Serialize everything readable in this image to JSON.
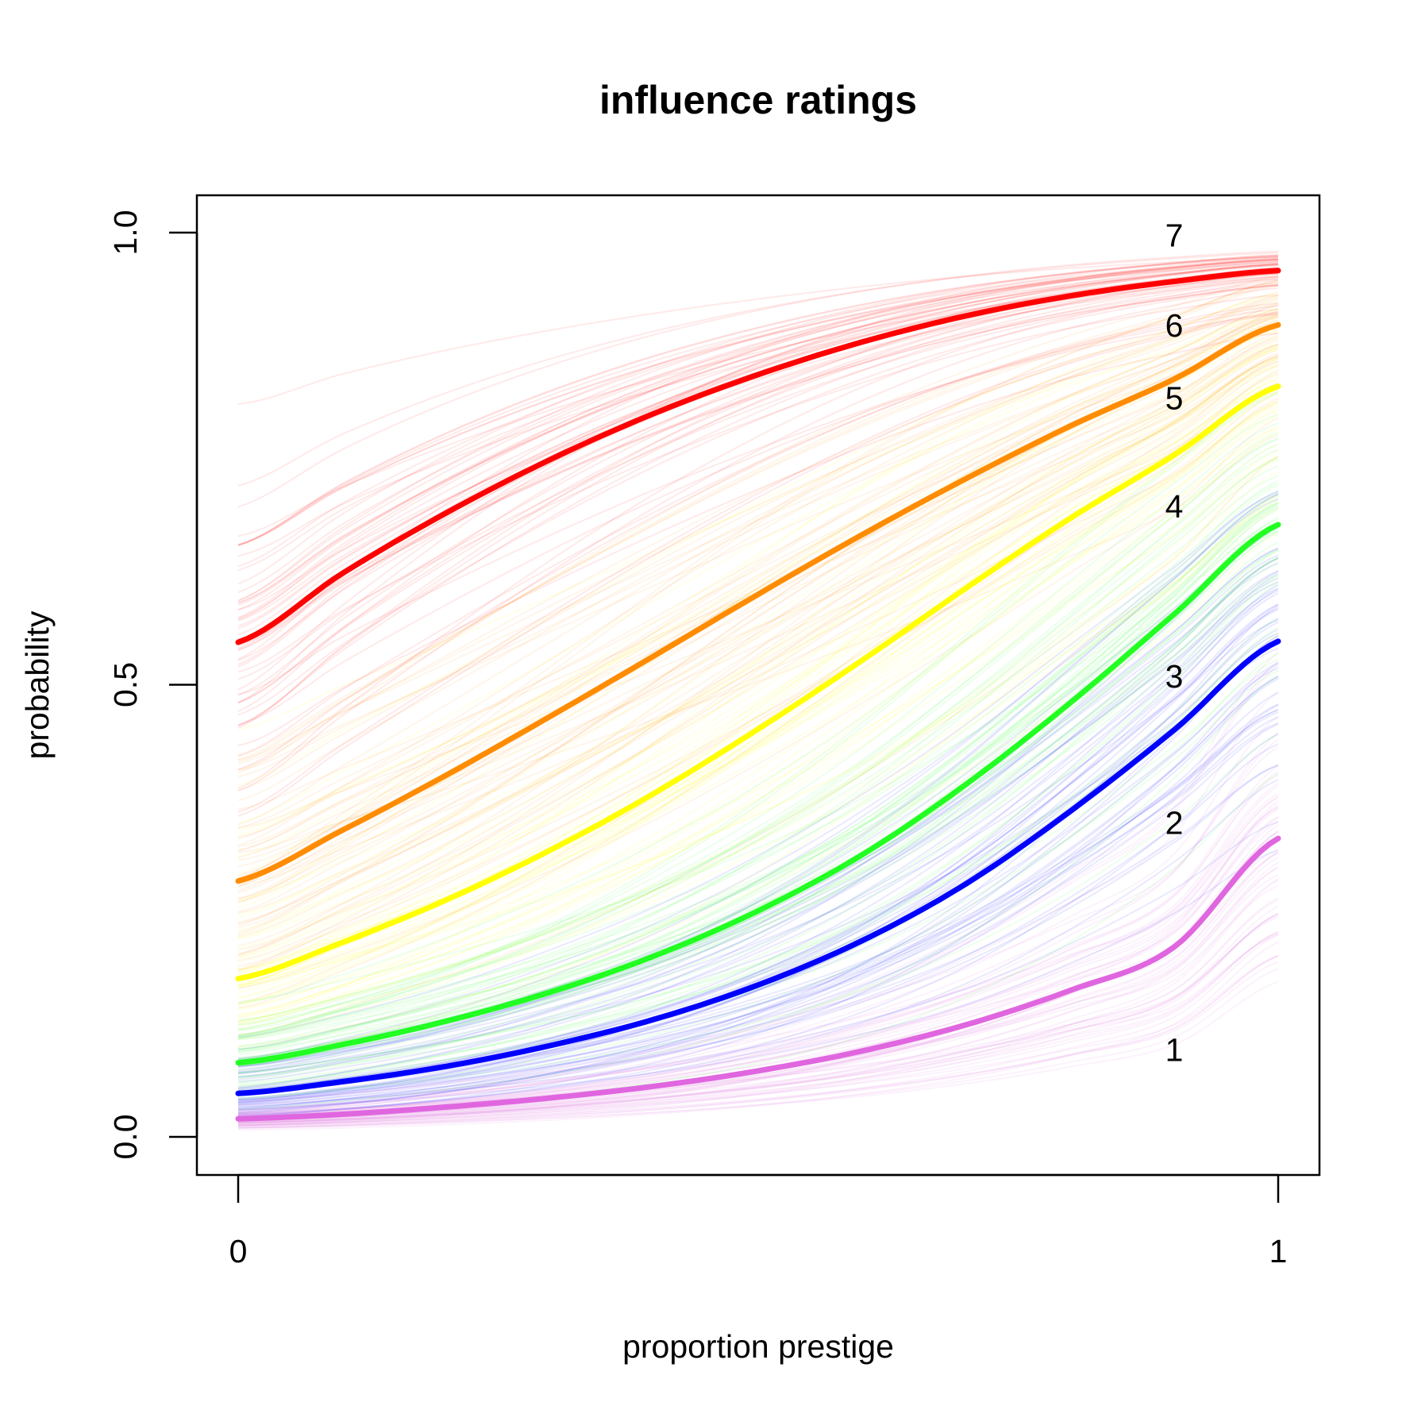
{
  "chart_data": {
    "type": "line",
    "title": "influence ratings",
    "xlabel": "proportion prestige",
    "ylabel": "probability",
    "xlim": [
      0,
      1
    ],
    "ylim": [
      0,
      1
    ],
    "x_ticks": [
      {
        "value": 0,
        "label": "0"
      },
      {
        "value": 1,
        "label": "1"
      }
    ],
    "y_ticks": [
      {
        "value": 0,
        "label": "0.0"
      },
      {
        "value": 0.5,
        "label": "0.5"
      },
      {
        "value": 1,
        "label": "1.0"
      }
    ],
    "grid": false,
    "legend": "none",
    "x": [
      0,
      0.1,
      0.2,
      0.3,
      0.4,
      0.5,
      0.6,
      0.7,
      0.8,
      0.9,
      1.0
    ],
    "series": [
      {
        "values": [
          0.02,
          0.025,
          0.033,
          0.043,
          0.056,
          0.073,
          0.095,
          0.124,
          0.162,
          0.21,
          0.33
        ],
        "color": "#E066E0"
      },
      {
        "values": [
          0.048,
          0.061,
          0.078,
          0.101,
          0.13,
          0.168,
          0.217,
          0.28,
          0.36,
          0.45,
          0.548
        ],
        "color": "#0000FF"
      },
      {
        "values": [
          0.082,
          0.102,
          0.128,
          0.16,
          0.2,
          0.25,
          0.312,
          0.39,
          0.48,
          0.578,
          0.677
        ],
        "color": "#22FF22"
      },
      {
        "values": [
          0.175,
          0.215,
          0.262,
          0.317,
          0.38,
          0.451,
          0.527,
          0.607,
          0.684,
          0.754,
          0.83
        ],
        "color": "#FFFF00"
      },
      {
        "values": [
          0.283,
          0.339,
          0.4,
          0.465,
          0.532,
          0.6,
          0.666,
          0.728,
          0.786,
          0.838,
          0.898
        ],
        "color": "#FF8C00"
      },
      {
        "values": [
          0.547,
          0.623,
          0.69,
          0.749,
          0.8,
          0.843,
          0.879,
          0.908,
          0.93,
          0.946,
          0.958
        ],
        "color": "#FF0000"
      }
    ],
    "category_labels": [
      {
        "label": "1",
        "value": 0.097
      },
      {
        "label": "2",
        "value": 0.348
      },
      {
        "label": "3",
        "value": 0.51
      },
      {
        "label": "4",
        "value": 0.698
      },
      {
        "label": "5",
        "value": 0.818
      },
      {
        "label": "6",
        "value": 0.898
      },
      {
        "label": "7",
        "value": 0.998
      }
    ],
    "category_label_x": 0.9,
    "uncertainty_draws": 60
  }
}
